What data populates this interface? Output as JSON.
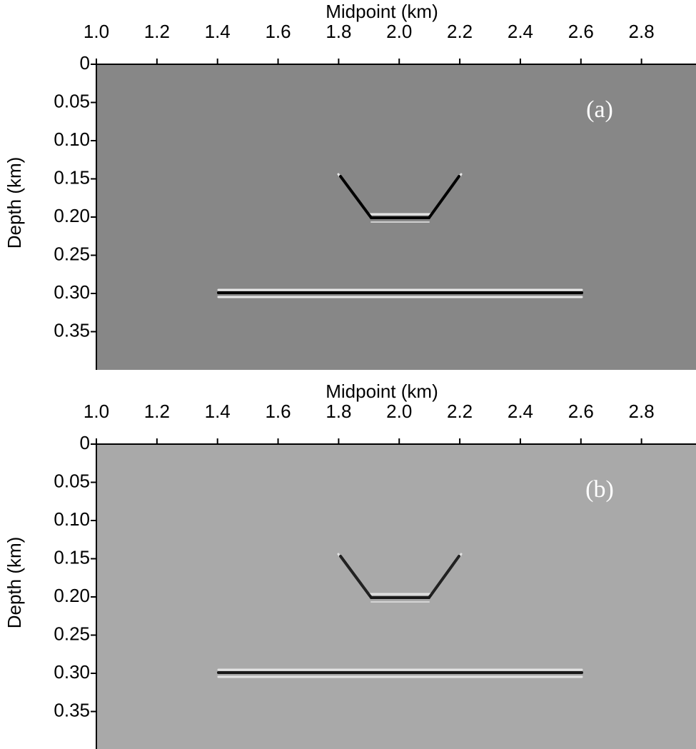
{
  "chart_data": [
    {
      "type": "image",
      "title": "Midpoint (km)",
      "y_label": "Depth (km)",
      "annotation": "(a)",
      "color": "#878787",
      "xlim": [
        1.0,
        2.98
      ],
      "ylim": [
        0.4,
        0
      ],
      "xticks": [
        {
          "value": 1.0,
          "label": "1.0"
        },
        1.2,
        1.4,
        1.6,
        1.8,
        {
          "value": 2.0,
          "label": "2.0"
        },
        2.2,
        2.4,
        2.6,
        2.8
      ],
      "yticks": [
        0,
        0.05,
        {
          "value": 0.1,
          "label": "0.10"
        },
        0.15,
        {
          "value": 0.2,
          "label": "0.20"
        },
        0.25,
        {
          "value": 0.3,
          "label": "0.30"
        },
        0.35
      ]
    },
    {
      "type": "image",
      "title": "Midpoint (km)",
      "y_label": "Depth (km)",
      "annotation": "(b)",
      "color": "#a9a9a9",
      "xlim": [
        1.0,
        2.98
      ],
      "ylim": [
        0.4,
        0
      ],
      "xticks": [
        {
          "value": 1.0,
          "label": "1.0"
        },
        1.2,
        1.4,
        1.6,
        1.8,
        {
          "value": 2.0,
          "label": "2.0"
        },
        2.2,
        2.4,
        2.6,
        2.8
      ],
      "yticks": [
        0,
        0.05,
        {
          "value": 0.1,
          "label": "0.10"
        },
        0.15,
        {
          "value": 0.2,
          "label": "0.20"
        },
        0.25,
        {
          "value": 0.3,
          "label": "0.30"
        },
        0.35
      ]
    }
  ]
}
